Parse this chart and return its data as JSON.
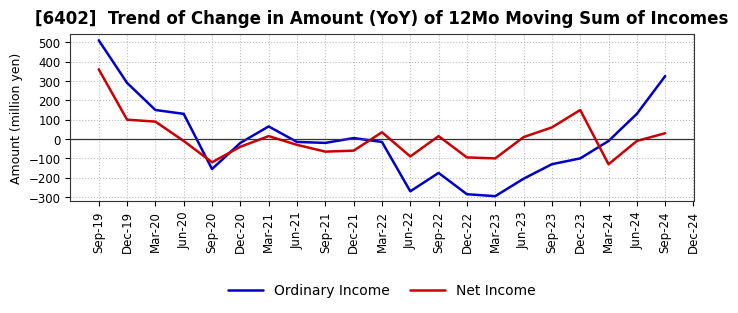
{
  "title": "[6402]  Trend of Change in Amount (YoY) of 12Mo Moving Sum of Incomes",
  "ylabel": "Amount (million yen)",
  "xlabel": "",
  "ylim": [
    -320,
    540
  ],
  "yticks": [
    -300,
    -200,
    -100,
    0,
    100,
    200,
    300,
    400,
    500
  ],
  "background_color": "#ffffff",
  "plot_bg_color": "#ffffff",
  "grid_color": "#bbbbbb",
  "x_labels": [
    "Sep-19",
    "Dec-19",
    "Mar-20",
    "Jun-20",
    "Sep-20",
    "Dec-20",
    "Mar-21",
    "Jun-21",
    "Sep-21",
    "Dec-21",
    "Mar-22",
    "Jun-22",
    "Sep-22",
    "Dec-22",
    "Mar-23",
    "Jun-23",
    "Sep-23",
    "Dec-23",
    "Mar-24",
    "Jun-24",
    "Sep-24",
    "Dec-24"
  ],
  "ordinary_income": [
    510,
    290,
    150,
    130,
    -155,
    -20,
    65,
    -15,
    -20,
    5,
    -15,
    -270,
    -175,
    -285,
    -295,
    -205,
    -130,
    -100,
    -10,
    130,
    325,
    null
  ],
  "net_income": [
    360,
    100,
    90,
    -10,
    -120,
    -40,
    15,
    -30,
    -65,
    -60,
    35,
    -90,
    15,
    -95,
    -100,
    10,
    60,
    150,
    -130,
    -10,
    30,
    null
  ],
  "ordinary_income_color": "#0000cc",
  "net_income_color": "#cc0000",
  "line_width": 1.8,
  "legend_labels": [
    "Ordinary Income",
    "Net Income"
  ],
  "title_fontsize": 12,
  "axis_fontsize": 9,
  "tick_fontsize": 8.5,
  "legend_fontsize": 10
}
